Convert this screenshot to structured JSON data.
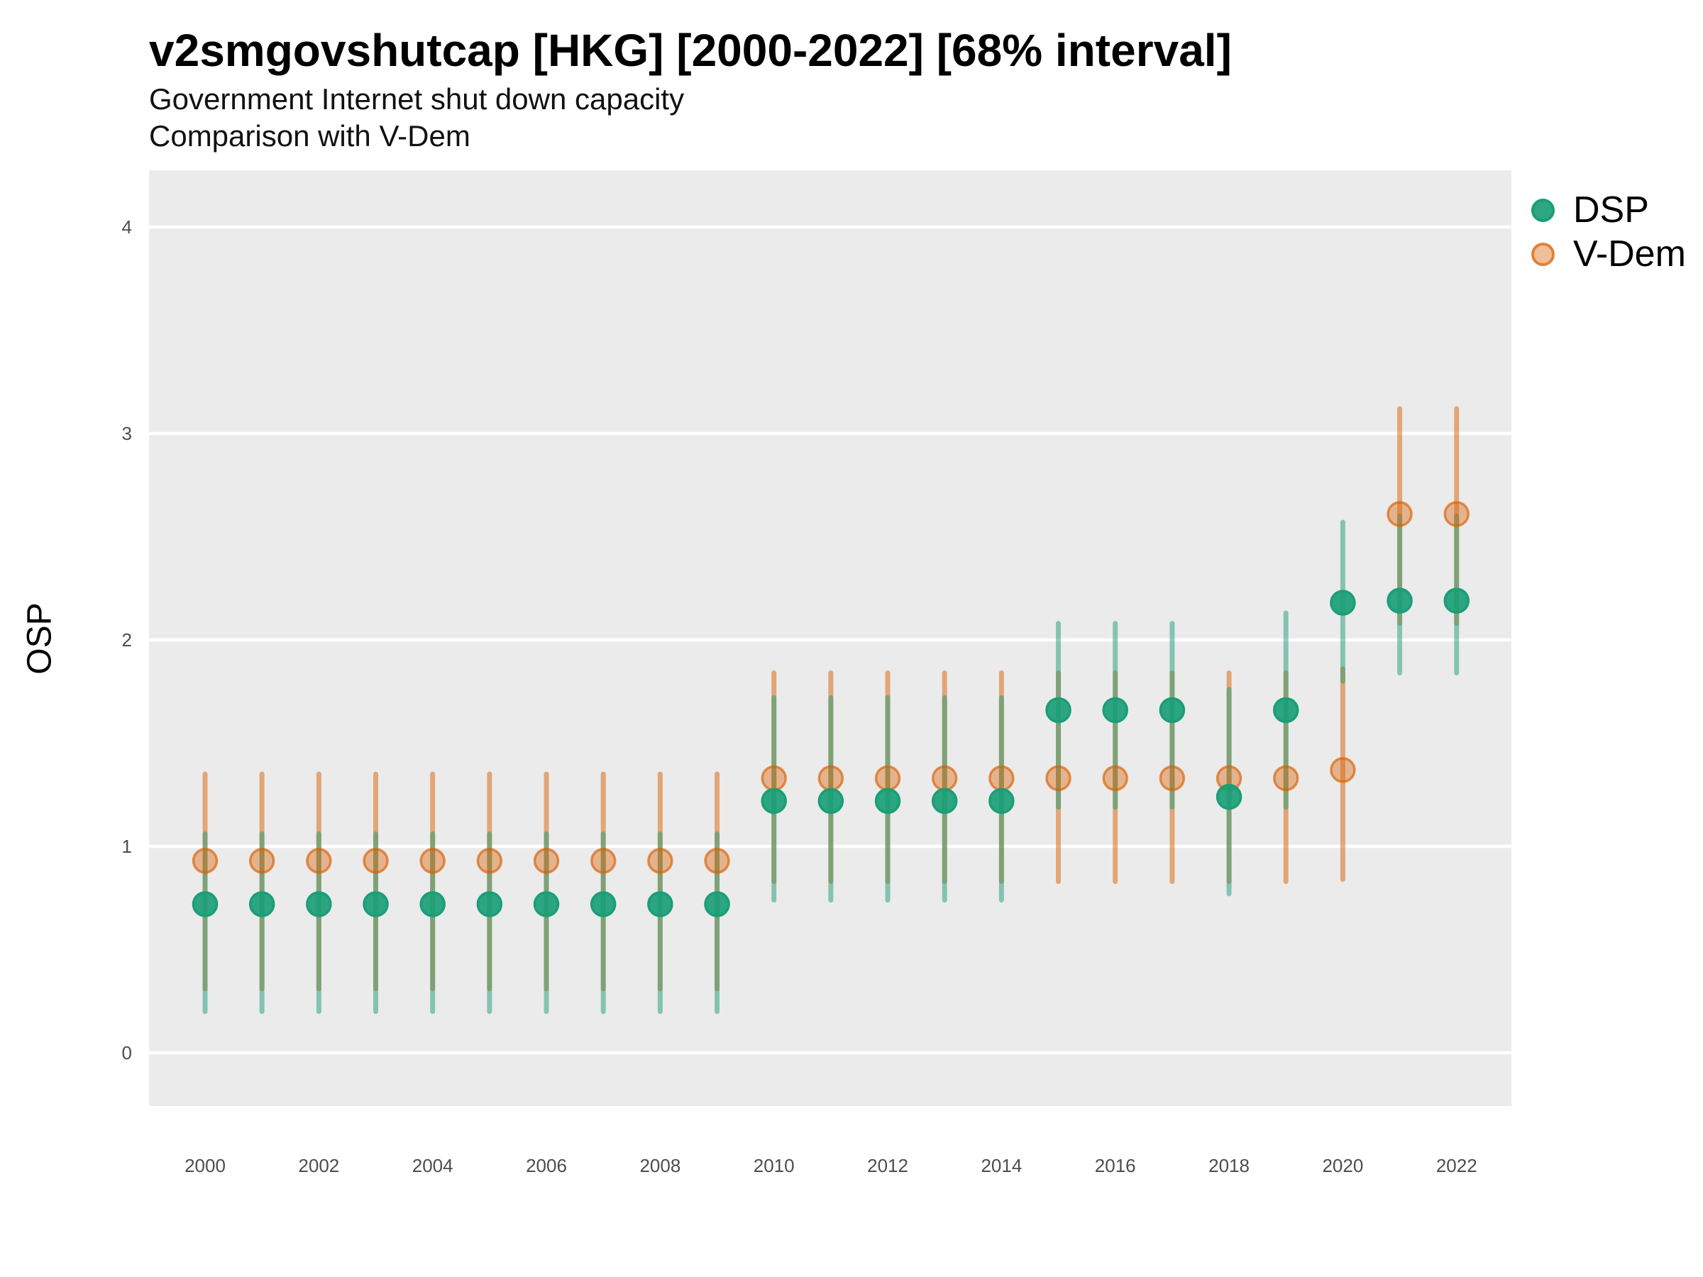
{
  "header": {
    "title": "v2smgovshutcap [HKG] [2000-2022] [68% interval]",
    "subtitle": "Government Internet shut down capacity",
    "subtitle2": "Comparison with V-Dem"
  },
  "legend": {
    "items": [
      {
        "label": "DSP",
        "color": "#1b9e77"
      },
      {
        "label": "V-Dem",
        "color": "#d95f02"
      }
    ]
  },
  "chart_data": {
    "type": "pointrange",
    "title": "v2smgovshutcap [HKG] [2000-2022] [68% interval]",
    "subtitle": "Government Internet shut down capacity",
    "subtitle2": "Comparison with V-Dem",
    "interval": "68%",
    "xlabel": "",
    "ylabel": "OSP",
    "x": [
      2000,
      2001,
      2002,
      2003,
      2004,
      2005,
      2006,
      2007,
      2008,
      2009,
      2010,
      2011,
      2012,
      2013,
      2014,
      2015,
      2016,
      2017,
      2018,
      2019,
      2020,
      2021,
      2022
    ],
    "x_tick_labels": [
      "2000",
      "2002",
      "2004",
      "2006",
      "2008",
      "2010",
      "2012",
      "2014",
      "2016",
      "2018",
      "2020",
      "2022"
    ],
    "y_ticks": [
      0,
      1,
      2,
      3,
      4
    ],
    "ylim": [
      -0.26,
      4.28
    ],
    "grid": "major-horizontal-only",
    "legend_position": "right-top",
    "panel_bg": "#ebebeb",
    "grid_color": "#ffffff",
    "tick_label_color": "#4d4d4d",
    "series": [
      {
        "name": "DSP",
        "color": "#1b9e77",
        "bar_opacity": 0.5,
        "point_fill_opacity": 0.92,
        "point_stroke_opacity": 1.0,
        "values": [
          0.72,
          0.72,
          0.72,
          0.72,
          0.72,
          0.72,
          0.72,
          0.72,
          0.72,
          0.72,
          1.22,
          1.22,
          1.22,
          1.22,
          1.22,
          1.66,
          1.66,
          1.66,
          1.24,
          1.66,
          2.18,
          2.19,
          2.19
        ],
        "lower": [
          0.2,
          0.2,
          0.2,
          0.2,
          0.2,
          0.2,
          0.2,
          0.2,
          0.2,
          0.2,
          0.74,
          0.74,
          0.74,
          0.74,
          0.74,
          1.19,
          1.19,
          1.19,
          0.77,
          1.19,
          1.8,
          1.84,
          1.84
        ],
        "upper": [
          1.06,
          1.06,
          1.06,
          1.06,
          1.06,
          1.06,
          1.06,
          1.06,
          1.06,
          1.06,
          1.72,
          1.72,
          1.72,
          1.72,
          1.72,
          2.08,
          2.08,
          2.08,
          1.76,
          2.13,
          2.57,
          2.6,
          2.6
        ]
      },
      {
        "name": "V-Dem",
        "color": "#d95f02",
        "bar_opacity": 0.5,
        "point_fill_opacity": 0.4,
        "point_stroke_opacity": 0.65,
        "values": [
          0.93,
          0.93,
          0.93,
          0.93,
          0.93,
          0.93,
          0.93,
          0.93,
          0.93,
          0.93,
          1.33,
          1.33,
          1.33,
          1.33,
          1.33,
          1.33,
          1.33,
          1.33,
          1.33,
          1.33,
          1.37,
          2.61,
          2.61
        ],
        "lower": [
          0.31,
          0.31,
          0.31,
          0.31,
          0.31,
          0.31,
          0.31,
          0.31,
          0.31,
          0.31,
          0.83,
          0.83,
          0.83,
          0.83,
          0.83,
          0.83,
          0.83,
          0.83,
          0.83,
          0.83,
          0.84,
          2.08,
          2.08
        ],
        "upper": [
          1.35,
          1.35,
          1.35,
          1.35,
          1.35,
          1.35,
          1.35,
          1.35,
          1.35,
          1.35,
          1.84,
          1.84,
          1.84,
          1.84,
          1.84,
          1.84,
          1.84,
          1.84,
          1.84,
          1.84,
          1.86,
          3.12,
          3.12
        ]
      }
    ]
  }
}
